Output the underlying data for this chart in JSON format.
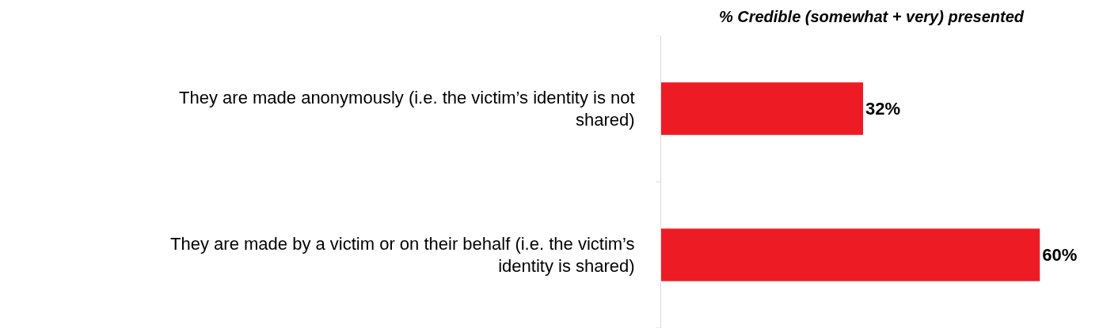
{
  "chart_data": {
    "type": "bar",
    "orientation": "horizontal",
    "title": "% Credible (somewhat + very) presented",
    "categories": [
      "They are made anonymously (i.e. the victim’s identity is not shared)",
      "They are made by a victim or on their behalf (i.e. the victim’s identity is shared)"
    ],
    "values": [
      32,
      60
    ],
    "value_labels": [
      "32%",
      "60%"
    ],
    "color": "#ed1c24",
    "tick_labels": "y",
    "grid": false,
    "legend": false
  }
}
